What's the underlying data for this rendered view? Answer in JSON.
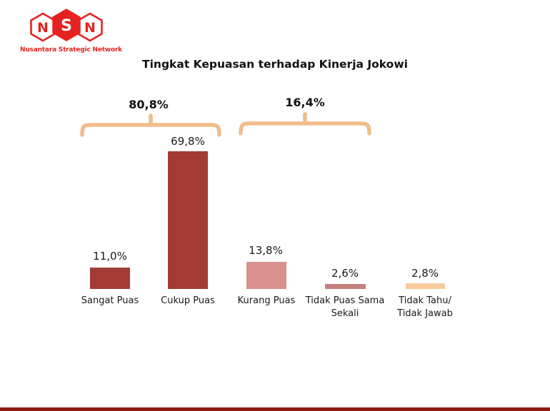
{
  "logo": {
    "letters": [
      "N",
      "S",
      "N"
    ],
    "tagline": "Nusantara Strategic Network",
    "brand_color": "#E42320"
  },
  "header": {
    "title": "Tingkat Kepuasan terhadap Kinerja Jokowi"
  },
  "chart_data": {
    "type": "bar",
    "title": "Tingkat Kepuasan terhadap Kinerja Jokowi",
    "categories": [
      "Sangat Puas",
      "Cukup Puas",
      "Kurang Puas",
      "Tidak Puas Sama Sekali",
      "Tidak Tahu/Tidak Jawab"
    ],
    "categories_display": [
      [
        "Sangat Puas"
      ],
      [
        "Cukup Puas"
      ],
      [
        "Kurang Puas"
      ],
      [
        "Tidak Puas Sama",
        "Sekali"
      ],
      [
        "Tidak Tahu/",
        "Tidak Jawab"
      ]
    ],
    "values": [
      11.0,
      69.8,
      13.8,
      2.6,
      2.8
    ],
    "value_labels": [
      "11,0%",
      "69,8%",
      "13,8%",
      "2,6%",
      "2,8%"
    ],
    "bar_colors": [
      "#A23B36",
      "#A23B36",
      "#DA918D",
      "#C5817E",
      "#F8CA9D"
    ],
    "groups": [
      {
        "label": "80,8%",
        "value": 80.8,
        "span": [
          "Sangat Puas",
          "Cukup Puas"
        ]
      },
      {
        "label": "16,4%",
        "value": 16.4,
        "span": [
          "Kurang Puas",
          "Tidak Puas Sama Sekali"
        ]
      }
    ],
    "ylim": [
      0,
      100
    ],
    "grid": false,
    "legend": false,
    "bracket_color": "#F0BD8B"
  },
  "colors": {
    "bar_dark_red": "#A23B36",
    "bar_rose": "#DA918D",
    "bar_medium_rose": "#C5817E",
    "bar_peach": "#F8CA9D",
    "bracket": "#F0BD8B",
    "logo_red": "#E42320",
    "footer_stripe": "#8B1A10"
  }
}
